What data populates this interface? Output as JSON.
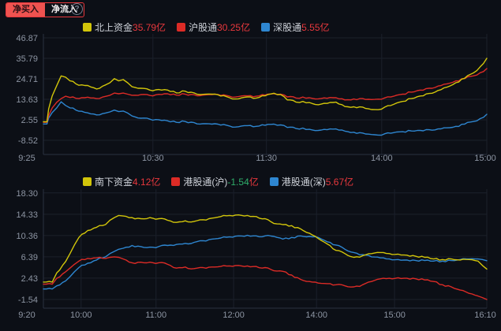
{
  "toolbar": {
    "tab_net_buy": "净买入",
    "tab_net_inflow": "净流入",
    "help": "?"
  },
  "colors": {
    "background": "#0c0f16",
    "grid": "#1b202b",
    "axis": "#2a3140",
    "tick_text": "#8d95a3",
    "legend_text": "#cfd3da",
    "positive_red": "#e8383d",
    "negative_green": "#2fae6b",
    "line_yellow": "#d2c50a",
    "line_red": "#dc2b26",
    "line_blue": "#2e86d0",
    "tab_active_bg": "#ef5350"
  },
  "chart_data": [
    {
      "type": "line",
      "name": "northbound-funds",
      "legend": [
        {
          "label": "北上资金",
          "value": "35.79",
          "unit": "亿",
          "color": "#d2c50a",
          "value_color": "#e8383d"
        },
        {
          "label": "沪股通",
          "value": "30.25",
          "unit": "亿",
          "color": "#dc2b26",
          "value_color": "#e8383d"
        },
        {
          "label": "深股通",
          "value": "5.55",
          "unit": "亿",
          "color": "#2e86d0",
          "value_color": "#e8383d"
        }
      ],
      "ylim": [
        -16.2,
        49.0
      ],
      "y_ticks": [
        {
          "v": 46.87,
          "label": "46.87"
        },
        {
          "v": 35.79,
          "label": "35.79"
        },
        {
          "v": 24.71,
          "label": "24.71"
        },
        {
          "v": 13.63,
          "label": "13.63"
        },
        {
          "v": 2.55,
          "label": "2.55"
        },
        {
          "v": -8.52,
          "label": "-8.52"
        }
      ],
      "x_ticks": [
        {
          "f": 0,
          "label": "9:25"
        },
        {
          "f": 0.247,
          "label": "10:30"
        },
        {
          "f": 0.503,
          "label": "11:30"
        },
        {
          "f": 0.763,
          "label": "14:00"
        },
        {
          "f": 1,
          "label": "15:00"
        }
      ],
      "x": [
        0,
        0.008,
        0.012,
        0.02,
        0.03,
        0.04,
        0.05,
        0.06,
        0.08,
        0.1,
        0.12,
        0.14,
        0.15,
        0.16,
        0.17,
        0.18,
        0.19,
        0.2,
        0.22,
        0.24,
        0.26,
        0.28,
        0.3,
        0.32,
        0.34,
        0.36,
        0.38,
        0.4,
        0.42,
        0.44,
        0.46,
        0.48,
        0.5,
        0.52,
        0.535,
        0.55,
        0.57,
        0.6,
        0.62,
        0.64,
        0.66,
        0.68,
        0.7,
        0.72,
        0.74,
        0.755,
        0.77,
        0.79,
        0.81,
        0.83,
        0.85,
        0.87,
        0.89,
        0.91,
        0.93,
        0.95,
        0.97,
        0.985,
        1.0
      ],
      "series": [
        {
          "name": "北上资金",
          "color": "#d2c50a",
          "values": [
            1.5,
            1.5,
            8.5,
            15.5,
            21.0,
            26.3,
            25.6,
            23.6,
            21.2,
            21.1,
            19.2,
            21.4,
            22.6,
            24.8,
            23.6,
            24.3,
            22.6,
            20.4,
            19.6,
            18.6,
            18.9,
            18.6,
            17.1,
            18.0,
            17.1,
            16.3,
            16.4,
            15.4,
            14.5,
            13.9,
            14.9,
            14.3,
            15.5,
            16.9,
            16.2,
            13.3,
            12.1,
            11.9,
            10.7,
            11.4,
            12.1,
            9.7,
            9.6,
            9.4,
            8.1,
            8.0,
            9.4,
            10.9,
            12.5,
            14.0,
            15.4,
            16.8,
            18.4,
            20.2,
            22.6,
            25.0,
            27.9,
            31.2,
            35.79
          ]
        },
        {
          "name": "沪股通",
          "color": "#dc2b26",
          "values": [
            1.2,
            1.2,
            5.0,
            9.0,
            12.0,
            14.0,
            15.3,
            14.6,
            14.0,
            14.8,
            14.0,
            15.2,
            15.8,
            17.0,
            16.6,
            17.0,
            16.4,
            15.8,
            16.2,
            15.7,
            16.3,
            16.6,
            15.9,
            16.4,
            16.1,
            15.9,
            16.2,
            15.7,
            15.3,
            15.1,
            15.5,
            15.3,
            15.9,
            16.7,
            16.4,
            14.9,
            14.3,
            14.5,
            13.9,
            14.2,
            14.5,
            13.3,
            13.8,
            14.0,
            13.5,
            13.7,
            14.4,
            15.3,
            16.4,
            17.5,
            18.6,
            19.6,
            20.8,
            22.0,
            23.6,
            24.8,
            26.3,
            28.0,
            30.25
          ]
        },
        {
          "name": "深股通",
          "color": "#2e86d0",
          "values": [
            0.3,
            0.3,
            3.5,
            6.5,
            9.0,
            12.3,
            10.3,
            9.0,
            7.2,
            6.3,
            5.2,
            6.2,
            6.8,
            7.8,
            7.0,
            7.3,
            6.2,
            4.6,
            3.4,
            2.9,
            2.6,
            2.0,
            1.2,
            1.6,
            1.0,
            0.4,
            0.2,
            -0.3,
            -0.8,
            -1.2,
            -0.6,
            -1.0,
            -0.4,
            0.2,
            -0.2,
            -1.6,
            -2.2,
            -2.6,
            -3.2,
            -2.8,
            -2.4,
            -3.6,
            -4.2,
            -4.6,
            -5.4,
            -5.7,
            -5.0,
            -4.4,
            -3.9,
            -3.5,
            -3.2,
            -2.8,
            -2.4,
            -1.8,
            -1.0,
            0.2,
            1.6,
            3.2,
            5.55
          ]
        }
      ]
    },
    {
      "type": "line",
      "name": "southbound-funds",
      "legend": [
        {
          "label": "南下资金",
          "value": "4.12",
          "unit": "亿",
          "color": "#d2c50a",
          "value_color": "#e8383d"
        },
        {
          "label": "港股通(沪)",
          "value": "-1.54",
          "unit": "亿",
          "color": "#dc2b26",
          "value_color": "#2fae6b"
        },
        {
          "label": "港股通(深)",
          "value": "5.67",
          "unit": "亿",
          "color": "#2e86d0",
          "value_color": "#e8383d"
        }
      ],
      "ylim": [
        -3.16,
        19.0
      ],
      "y_ticks": [
        {
          "v": 18.3,
          "label": "18.30"
        },
        {
          "v": 14.33,
          "label": "14.33"
        },
        {
          "v": 10.36,
          "label": "10.36"
        },
        {
          "v": 6.39,
          "label": "6.39"
        },
        {
          "v": 2.43,
          "label": "2.43"
        },
        {
          "v": -1.54,
          "label": "-1.54"
        }
      ],
      "x_ticks": [
        {
          "f": 0,
          "label": "9:20"
        },
        {
          "f": 0.085,
          "label": "10:00"
        },
        {
          "f": 0.254,
          "label": "11:00"
        },
        {
          "f": 0.429,
          "label": "12:00"
        },
        {
          "f": 0.616,
          "label": "14:00"
        },
        {
          "f": 0.792,
          "label": "15:00"
        },
        {
          "f": 1,
          "label": "16:10"
        }
      ],
      "x": [
        0,
        0.02,
        0.03,
        0.05,
        0.06,
        0.07,
        0.08,
        0.1,
        0.12,
        0.14,
        0.15,
        0.16,
        0.17,
        0.18,
        0.2,
        0.22,
        0.24,
        0.26,
        0.28,
        0.3,
        0.32,
        0.34,
        0.36,
        0.38,
        0.4,
        0.42,
        0.44,
        0.46,
        0.48,
        0.5,
        0.52,
        0.54,
        0.56,
        0.58,
        0.6,
        0.62,
        0.64,
        0.66,
        0.68,
        0.7,
        0.72,
        0.74,
        0.76,
        0.78,
        0.8,
        0.82,
        0.84,
        0.86,
        0.88,
        0.9,
        0.92,
        0.94,
        0.96,
        0.98,
        0.99,
        1.0
      ],
      "series": [
        {
          "name": "南下资金",
          "color": "#d2c50a",
          "values": [
            1.7,
            1.7,
            3.4,
            5.5,
            7.0,
            8.6,
            10.0,
            11.3,
            11.9,
            12.4,
            13.2,
            13.7,
            14.1,
            14.0,
            13.7,
            13.5,
            13.7,
            13.5,
            13.2,
            12.8,
            13.1,
            13.0,
            13.3,
            13.6,
            13.9,
            14.1,
            14.2,
            14.1,
            13.9,
            13.5,
            12.6,
            12.4,
            12.2,
            11.6,
            10.8,
            9.8,
            8.8,
            7.6,
            7.0,
            6.3,
            6.6,
            7.0,
            7.2,
            7.0,
            6.9,
            6.7,
            6.5,
            6.3,
            6.0,
            5.9,
            6.0,
            5.8,
            5.9,
            5.6,
            4.8,
            4.12
          ]
        },
        {
          "name": "港股通(沪)",
          "color": "#dc2b26",
          "values": [
            1.3,
            1.3,
            2.4,
            3.6,
            4.3,
            5.0,
            5.6,
            6.1,
            6.2,
            6.1,
            6.3,
            6.4,
            6.3,
            6.0,
            5.3,
            5.4,
            5.4,
            5.3,
            5.0,
            4.3,
            4.5,
            4.2,
            4.4,
            4.5,
            4.6,
            4.7,
            4.8,
            4.7,
            4.6,
            4.4,
            3.8,
            3.7,
            3.0,
            2.2,
            1.8,
            1.5,
            1.4,
            1.2,
            1.0,
            0.8,
            1.2,
            1.8,
            2.3,
            2.4,
            2.5,
            2.4,
            2.3,
            2.1,
            1.8,
            1.2,
            0.8,
            0.2,
            -0.4,
            -0.9,
            -1.2,
            -1.54
          ]
        },
        {
          "name": "港股通(深)",
          "color": "#2e86d0",
          "values": [
            0.4,
            0.4,
            1.0,
            1.9,
            2.7,
            3.6,
            4.4,
            5.2,
            5.8,
            6.4,
            7.0,
            7.4,
            7.8,
            8.0,
            8.5,
            8.3,
            8.2,
            8.3,
            8.5,
            8.7,
            8.9,
            9.1,
            9.4,
            9.7,
            9.9,
            10.1,
            10.3,
            10.4,
            10.3,
            10.3,
            10.2,
            9.7,
            10.0,
            10.3,
            10.2,
            10.0,
            9.2,
            8.6,
            7.8,
            7.2,
            6.8,
            6.4,
            6.2,
            6.0,
            5.9,
            5.8,
            5.7,
            5.7,
            5.6,
            5.6,
            5.7,
            5.9,
            6.0,
            6.0,
            5.9,
            5.67
          ]
        }
      ]
    }
  ]
}
